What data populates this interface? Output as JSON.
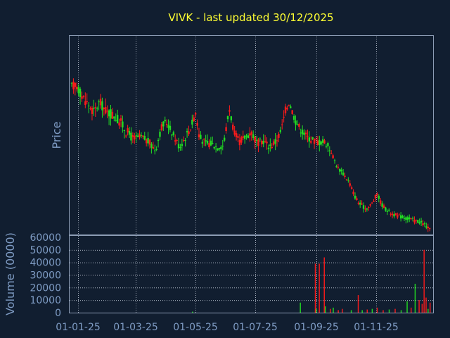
{
  "chart_data": {
    "type": "candlestick",
    "title": "VIVK - last updated 30/12/2025",
    "colors": {
      "background": "#111e30",
      "frame": "#8c9cb4",
      "grid": "#c8d0dc",
      "title": "#ffff33",
      "label": "#7f9cc4",
      "up": "#22dd22",
      "down": "#ff1a1a"
    },
    "price_panel": {
      "ylabel": "Price",
      "ylim": [
        0.0,
        1.0
      ],
      "y_ticks_shown": false,
      "grid_x": true
    },
    "volume_panel": {
      "ylabel": "Volume (0000)",
      "ylim": [
        0,
        60000
      ],
      "y_ticks": [
        "60000",
        "50000",
        "40000",
        "30000",
        "20000",
        "10000",
        "0"
      ],
      "grid_y": true,
      "grid_x": true
    },
    "x_ticks": [
      "01-01-25",
      "01-03-25",
      "01-05-25",
      "01-07-25",
      "01-09-25",
      "01-11-25"
    ],
    "price_path": [
      {
        "x": 0,
        "y": 0.87
      },
      {
        "x": 4,
        "y": 0.89
      },
      {
        "x": 10,
        "y": 0.82
      },
      {
        "x": 16,
        "y": 0.77
      },
      {
        "x": 22,
        "y": 0.72
      },
      {
        "x": 28,
        "y": 0.78
      },
      {
        "x": 35,
        "y": 0.72
      },
      {
        "x": 42,
        "y": 0.7
      },
      {
        "x": 50,
        "y": 0.65
      },
      {
        "x": 55,
        "y": 0.6
      },
      {
        "x": 62,
        "y": 0.56
      },
      {
        "x": 70,
        "y": 0.57
      },
      {
        "x": 77,
        "y": 0.54
      },
      {
        "x": 84,
        "y": 0.49
      },
      {
        "x": 90,
        "y": 0.63
      },
      {
        "x": 95,
        "y": 0.66
      },
      {
        "x": 102,
        "y": 0.58
      },
      {
        "x": 108,
        "y": 0.51
      },
      {
        "x": 114,
        "y": 0.57
      },
      {
        "x": 120,
        "y": 0.64
      },
      {
        "x": 124,
        "y": 0.72
      },
      {
        "x": 128,
        "y": 0.57
      },
      {
        "x": 134,
        "y": 0.53
      },
      {
        "x": 140,
        "y": 0.53
      },
      {
        "x": 146,
        "y": 0.51
      },
      {
        "x": 152,
        "y": 0.52
      },
      {
        "x": 158,
        "y": 0.74
      },
      {
        "x": 163,
        "y": 0.59
      },
      {
        "x": 168,
        "y": 0.54
      },
      {
        "x": 174,
        "y": 0.57
      },
      {
        "x": 180,
        "y": 0.6
      },
      {
        "x": 186,
        "y": 0.53
      },
      {
        "x": 192,
        "y": 0.55
      },
      {
        "x": 198,
        "y": 0.51
      },
      {
        "x": 204,
        "y": 0.54
      },
      {
        "x": 210,
        "y": 0.61
      },
      {
        "x": 214,
        "y": 0.73
      },
      {
        "x": 218,
        "y": 0.78
      },
      {
        "x": 224,
        "y": 0.67
      },
      {
        "x": 230,
        "y": 0.61
      },
      {
        "x": 236,
        "y": 0.57
      },
      {
        "x": 242,
        "y": 0.55
      },
      {
        "x": 248,
        "y": 0.54
      },
      {
        "x": 254,
        "y": 0.54
      },
      {
        "x": 260,
        "y": 0.48
      },
      {
        "x": 266,
        "y": 0.39
      },
      {
        "x": 272,
        "y": 0.35
      },
      {
        "x": 278,
        "y": 0.3
      },
      {
        "x": 283,
        "y": 0.22
      },
      {
        "x": 288,
        "y": 0.17
      },
      {
        "x": 294,
        "y": 0.14
      },
      {
        "x": 298,
        "y": 0.15
      },
      {
        "x": 302,
        "y": 0.18
      },
      {
        "x": 306,
        "y": 0.23
      },
      {
        "x": 310,
        "y": 0.17
      },
      {
        "x": 314,
        "y": 0.14
      },
      {
        "x": 318,
        "y": 0.12
      },
      {
        "x": 324,
        "y": 0.1
      },
      {
        "x": 330,
        "y": 0.09
      },
      {
        "x": 336,
        "y": 0.08
      },
      {
        "x": 342,
        "y": 0.07
      },
      {
        "x": 348,
        "y": 0.06
      },
      {
        "x": 354,
        "y": 0.04
      },
      {
        "x": 360,
        "y": 0.0
      }
    ],
    "volume_spikes": [
      {
        "x": 121,
        "v": 800,
        "dir": "up"
      },
      {
        "x": 229,
        "v": 8000,
        "dir": "up"
      },
      {
        "x": 244,
        "v": 39000,
        "dir": "down"
      },
      {
        "x": 245,
        "v": 3000,
        "dir": "up"
      },
      {
        "x": 248,
        "v": 39000,
        "dir": "down"
      },
      {
        "x": 253,
        "v": 44000,
        "dir": "down"
      },
      {
        "x": 254,
        "v": 5000,
        "dir": "up"
      },
      {
        "x": 259,
        "v": 3000,
        "dir": "down"
      },
      {
        "x": 262,
        "v": 4000,
        "dir": "up"
      },
      {
        "x": 267,
        "v": 2000,
        "dir": "down"
      },
      {
        "x": 271,
        "v": 3000,
        "dir": "down"
      },
      {
        "x": 280,
        "v": 2000,
        "dir": "up"
      },
      {
        "x": 287,
        "v": 14000,
        "dir": "down"
      },
      {
        "x": 291,
        "v": 2000,
        "dir": "up"
      },
      {
        "x": 296,
        "v": 2500,
        "dir": "down"
      },
      {
        "x": 301,
        "v": 3000,
        "dir": "up"
      },
      {
        "x": 306,
        "v": 4000,
        "dir": "down"
      },
      {
        "x": 312,
        "v": 2000,
        "dir": "down"
      },
      {
        "x": 318,
        "v": 2500,
        "dir": "up"
      },
      {
        "x": 324,
        "v": 3000,
        "dir": "down"
      },
      {
        "x": 330,
        "v": 2000,
        "dir": "up"
      },
      {
        "x": 336,
        "v": 9000,
        "dir": "up"
      },
      {
        "x": 340,
        "v": 4000,
        "dir": "down"
      },
      {
        "x": 344,
        "v": 23000,
        "dir": "up"
      },
      {
        "x": 348,
        "v": 10000,
        "dir": "down"
      },
      {
        "x": 351,
        "v": 7000,
        "dir": "down"
      },
      {
        "x": 353,
        "v": 50000,
        "dir": "down"
      },
      {
        "x": 355,
        "v": 12000,
        "dir": "down"
      },
      {
        "x": 357,
        "v": 3000,
        "dir": "up"
      },
      {
        "x": 359,
        "v": 8000,
        "dir": "down"
      }
    ]
  }
}
